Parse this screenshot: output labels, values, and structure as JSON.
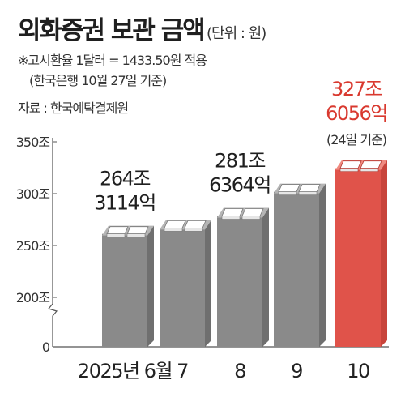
{
  "header": {
    "title": "외화증권 보관 금액",
    "unit": "(단위 : 원)",
    "note_line1": "※고시환율 1달러 = 1433.50원 적용",
    "note_line2": "(한국은행 10월 27일 기준)",
    "source": "자료 : 한국예탁결제원"
  },
  "chart_data": {
    "type": "bar",
    "title": "외화증권 보관 금액",
    "unit": "(단위 : 원)",
    "categories": [
      "2025년 6월",
      "7",
      "8",
      "9",
      "10"
    ],
    "values_jo": [
      264.3114,
      270,
      281.6364,
      305,
      327.6056
    ],
    "value_labels": [
      [
        "264조",
        "3114억"
      ],
      null,
      [
        "281조",
        "6364억"
      ],
      null,
      [
        "327조",
        "6056억"
      ]
    ],
    "annotations": [
      "",
      "",
      "",
      "",
      "(24일 기준)"
    ],
    "ylim": [
      0,
      350
    ],
    "axis_break": [
      0,
      200
    ],
    "yticks": [
      {
        "value": 0,
        "label": "0"
      },
      {
        "value": 200,
        "label": "200조"
      },
      {
        "value": 250,
        "label": "250조"
      },
      {
        "value": 300,
        "label": "300조"
      },
      {
        "value": 350,
        "label": "350조"
      }
    ],
    "colors": {
      "bar": "#8a8a8a",
      "bar_top": "#b5b5b5",
      "highlight": "#e0534a",
      "highlight_top": "#f08a80",
      "highlight_label": "#d9392f",
      "brick": "#ffffff"
    },
    "highlight_index": 4
  }
}
